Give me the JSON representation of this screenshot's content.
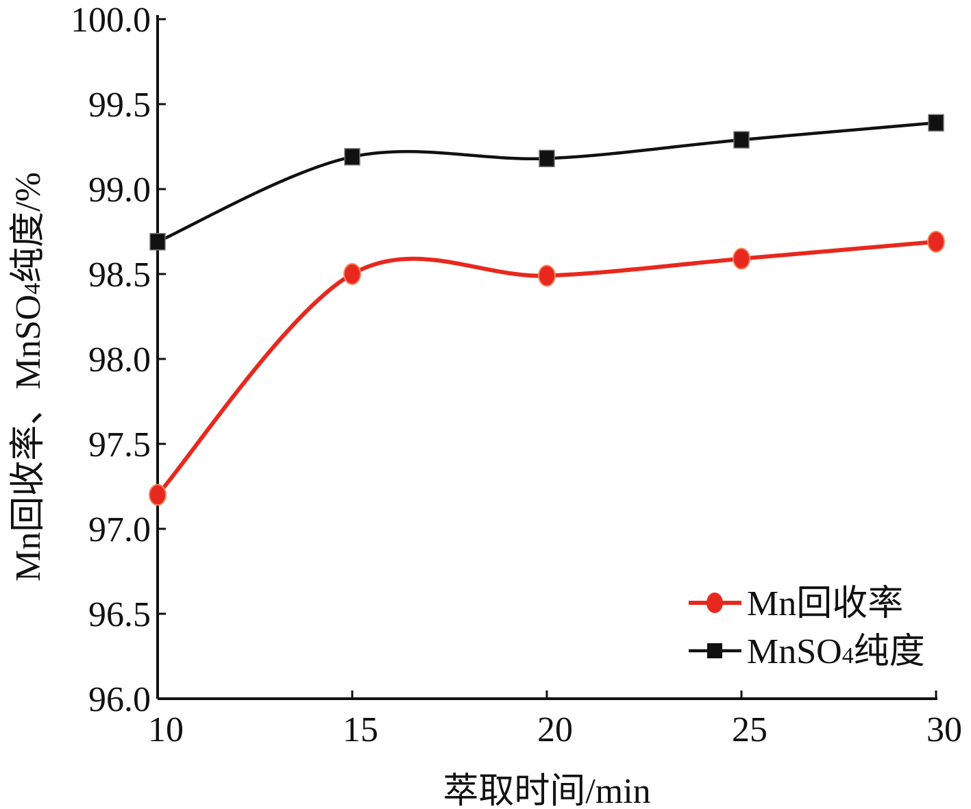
{
  "chart_data": {
    "type": "line",
    "xlabel": "萃取时间/min",
    "ylabel": "Mn回收率、MnSO₄纯度/%",
    "x": [
      10,
      15,
      20,
      25,
      30
    ],
    "xlim": [
      10,
      30
    ],
    "ylim": [
      96.0,
      100.0
    ],
    "x_ticks": [
      "10",
      "15",
      "20",
      "25",
      "30"
    ],
    "y_ticks": [
      "96.0",
      "96.5",
      "97.0",
      "97.5",
      "98.0",
      "98.5",
      "99.0",
      "99.5",
      "100.0"
    ],
    "grid": false,
    "legend_position": "bottom-right",
    "series": [
      {
        "name": "Mn回收率",
        "values": [
          97.2,
          98.5,
          98.49,
          98.59,
          98.69
        ],
        "color": "#e8281e",
        "marker": "circle"
      },
      {
        "name": "MnSO₄纯度",
        "values": [
          98.69,
          99.19,
          99.18,
          99.29,
          99.39
        ],
        "color": "#111111",
        "marker": "square"
      }
    ]
  }
}
